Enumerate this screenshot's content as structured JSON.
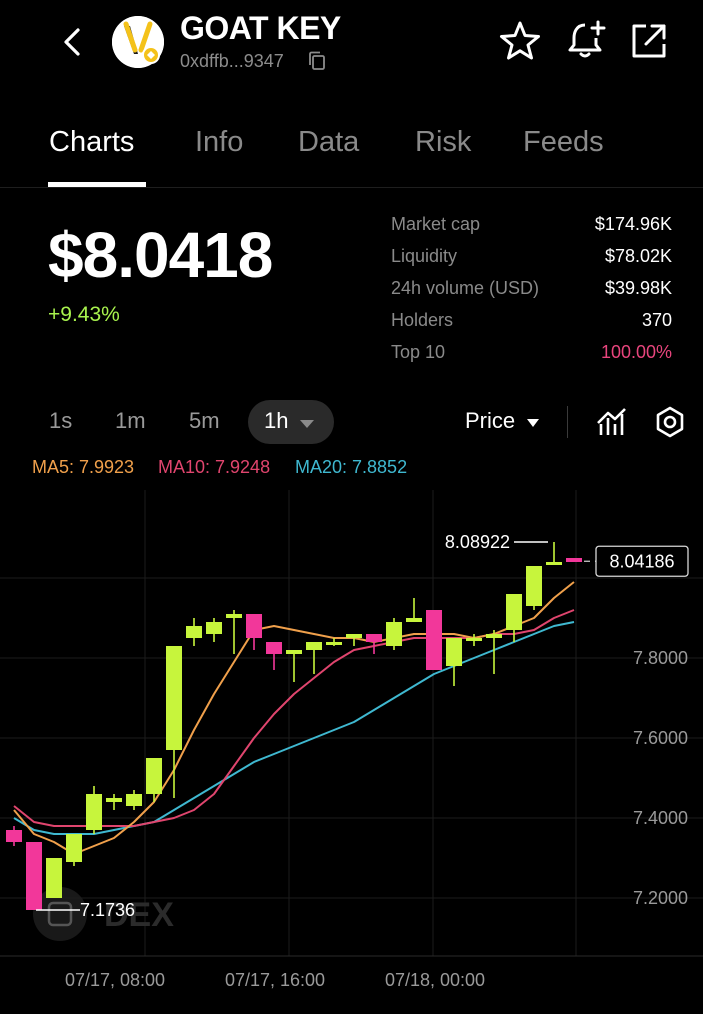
{
  "header": {
    "token_name": "GOAT KEY",
    "address": "0xdffb...9347",
    "icons": [
      "back-icon",
      "token-logo",
      "copy-icon",
      "star-icon",
      "bell-plus-icon",
      "share-icon"
    ]
  },
  "tabs": [
    {
      "label": "Charts",
      "active": true
    },
    {
      "label": "Info",
      "active": false
    },
    {
      "label": "Data",
      "active": false
    },
    {
      "label": "Risk",
      "active": false
    },
    {
      "label": "Feeds",
      "active": false
    }
  ],
  "price": {
    "value": "$8.0418",
    "change": "+9.43%"
  },
  "stats": [
    {
      "label": "Market cap",
      "value": "$174.96K"
    },
    {
      "label": "Liquidity",
      "value": "$78.02K"
    },
    {
      "label": "24h volume (USD)",
      "value": "$39.98K"
    },
    {
      "label": "Holders",
      "value": "370"
    },
    {
      "label": "Top 10",
      "value": "100.00%"
    }
  ],
  "colors": {
    "up": "#c7f53c",
    "down": "#f2379a",
    "change_positive": "#a9f34e",
    "top10": "#e8457d",
    "ma5": "#f0a04b",
    "ma10": "#e0456e",
    "ma20": "#3fb8d0"
  },
  "toolbar": {
    "timeframes": [
      "1s",
      "1m",
      "5m",
      "1h"
    ],
    "selected_timeframe": "1h",
    "price_mode": "Price"
  },
  "moving_averages": {
    "ma5": "MA5: 7.9923",
    "ma10": "MA10: 7.9248",
    "ma20": "MA20: 7.8852"
  },
  "watermark": "DEX",
  "chart_data": {
    "type": "candlestick",
    "y_ticks": [
      "7.8000",
      "7.6000",
      "7.4000",
      "7.2000"
    ],
    "y_tick_values": [
      7.8,
      7.6,
      7.4,
      7.2
    ],
    "x_ticks": [
      "07/17, 08:00",
      "07/17, 16:00",
      "07/18, 00:00"
    ],
    "current_price_label": "8.04186",
    "high_label": "8.08922",
    "low_label": "7.1736",
    "ylim": [
      7.0,
      8.12
    ],
    "candles": [
      [
        7.37,
        7.34,
        7.38,
        7.33
      ],
      [
        7.34,
        7.17,
        7.34,
        7.17
      ],
      [
        7.2,
        7.3,
        7.3,
        7.2
      ],
      [
        7.29,
        7.36,
        7.36,
        7.28
      ],
      [
        7.37,
        7.46,
        7.48,
        7.36
      ],
      [
        7.44,
        7.45,
        7.46,
        7.42
      ],
      [
        7.43,
        7.46,
        7.47,
        7.42
      ],
      [
        7.46,
        7.55,
        7.55,
        7.44
      ],
      [
        7.57,
        7.83,
        7.83,
        7.45
      ],
      [
        7.85,
        7.88,
        7.9,
        7.83
      ],
      [
        7.86,
        7.89,
        7.9,
        7.84
      ],
      [
        7.9,
        7.91,
        7.92,
        7.81
      ],
      [
        7.91,
        7.85,
        7.91,
        7.82
      ],
      [
        7.84,
        7.81,
        7.84,
        7.77
      ],
      [
        7.81,
        7.82,
        7.82,
        7.74
      ],
      [
        7.82,
        7.84,
        7.84,
        7.76
      ],
      [
        7.84,
        7.84,
        7.85,
        7.83
      ],
      [
        7.85,
        7.86,
        7.86,
        7.83
      ],
      [
        7.86,
        7.84,
        7.86,
        7.81
      ],
      [
        7.83,
        7.89,
        7.9,
        7.82
      ],
      [
        7.89,
        7.9,
        7.95,
        7.89
      ],
      [
        7.92,
        7.77,
        7.92,
        7.77
      ],
      [
        7.78,
        7.85,
        7.85,
        7.73
      ],
      [
        7.85,
        7.85,
        7.86,
        7.83
      ],
      [
        7.85,
        7.86,
        7.87,
        7.76
      ],
      [
        7.87,
        7.96,
        7.96,
        7.84
      ],
      [
        7.93,
        8.03,
        8.03,
        7.92
      ],
      [
        8.04,
        8.04,
        8.09,
        8.04
      ],
      [
        8.05,
        8.04,
        8.05,
        8.04
      ]
    ],
    "ma5_line": [
      7.42,
      7.36,
      7.34,
      7.31,
      7.33,
      7.35,
      7.39,
      7.44,
      7.52,
      7.62,
      7.71,
      7.79,
      7.87,
      7.88,
      7.87,
      7.86,
      7.85,
      7.85,
      7.84,
      7.85,
      7.86,
      7.86,
      7.86,
      7.85,
      7.86,
      7.88,
      7.9,
      7.95,
      7.99
    ],
    "ma10_line": [
      7.43,
      7.39,
      7.38,
      7.38,
      7.38,
      7.38,
      7.38,
      7.39,
      7.4,
      7.42,
      7.46,
      7.53,
      7.6,
      7.66,
      7.71,
      7.75,
      7.79,
      7.82,
      7.83,
      7.84,
      7.85,
      7.85,
      7.85,
      7.85,
      7.86,
      7.86,
      7.87,
      7.9,
      7.92
    ],
    "ma20_line": [
      7.4,
      7.37,
      7.36,
      7.36,
      7.36,
      7.37,
      7.38,
      7.39,
      7.42,
      7.45,
      7.48,
      7.51,
      7.54,
      7.56,
      7.58,
      7.6,
      7.62,
      7.64,
      7.67,
      7.7,
      7.73,
      7.76,
      7.78,
      7.8,
      7.82,
      7.84,
      7.86,
      7.88,
      7.89
    ]
  }
}
